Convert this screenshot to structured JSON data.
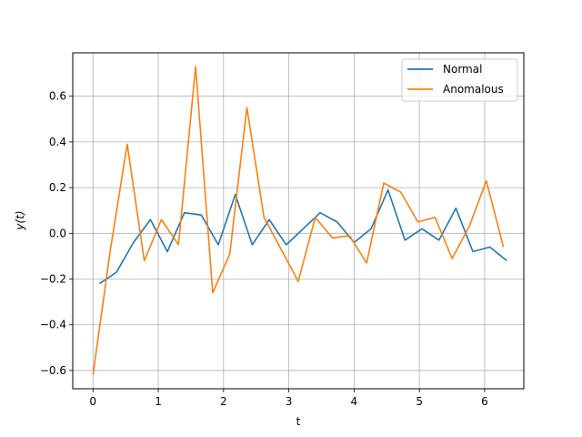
{
  "chart_data": {
    "type": "line",
    "xlabel": "t",
    "ylabel": "y(t)",
    "xlim": [
      -0.31,
      6.6
    ],
    "ylim": [
      -0.68,
      0.79
    ],
    "xticks": [
      0,
      1,
      2,
      3,
      4,
      5,
      6
    ],
    "yticks": [
      -0.6,
      -0.4,
      -0.2,
      0.0,
      0.2,
      0.4,
      0.6
    ],
    "xtick_labels": [
      "0",
      "1",
      "2",
      "3",
      "4",
      "5",
      "6"
    ],
    "ytick_labels": [
      "−0.6",
      "−0.4",
      "−0.2",
      "0.0",
      "0.2",
      "0.4",
      "0.6"
    ],
    "grid": true,
    "legend_position": "top-right",
    "series": [
      {
        "name": "Normal",
        "color": "#1f77b4",
        "x": [
          0.1,
          0.36,
          0.62,
          0.88,
          1.14,
          1.4,
          1.66,
          1.92,
          2.18,
          2.44,
          2.7,
          2.96,
          3.22,
          3.48,
          3.74,
          4.0,
          4.26,
          4.52,
          4.78,
          5.04,
          5.3,
          5.56,
          5.82,
          6.08,
          6.34
        ],
        "values": [
          -0.22,
          -0.17,
          -0.04,
          0.06,
          -0.08,
          0.09,
          0.08,
          -0.05,
          0.17,
          -0.05,
          0.06,
          -0.05,
          0.02,
          0.09,
          0.05,
          -0.04,
          0.02,
          0.19,
          -0.03,
          0.02,
          -0.03,
          0.11,
          -0.08,
          -0.06,
          -0.12
        ]
      },
      {
        "name": "Anomalous",
        "color": "#ff7f0e",
        "x": [
          0.0,
          0.262,
          0.524,
          0.786,
          1.048,
          1.31,
          1.572,
          1.834,
          2.096,
          2.358,
          2.62,
          2.882,
          3.144,
          3.406,
          3.668,
          3.93,
          4.192,
          4.454,
          4.716,
          4.978,
          5.24,
          5.502,
          5.764,
          6.026,
          6.288
        ],
        "values": [
          -0.62,
          -0.08,
          0.39,
          -0.12,
          0.06,
          -0.05,
          0.73,
          -0.26,
          -0.09,
          0.55,
          0.07,
          -0.07,
          -0.21,
          0.07,
          -0.02,
          -0.01,
          -0.13,
          0.22,
          0.18,
          0.05,
          0.07,
          -0.11,
          0.03,
          0.23,
          -0.06
        ]
      }
    ]
  }
}
